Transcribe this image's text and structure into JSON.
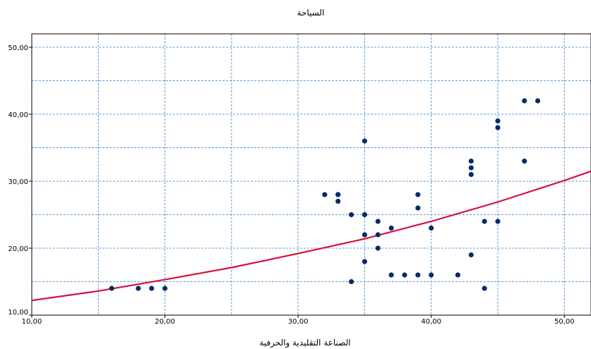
{
  "chart_data": {
    "type": "scatter",
    "title": "السياحة",
    "xlabel": "الصناعة التقليدية والحرفية",
    "ylabel": "",
    "xlim": [
      10,
      52
    ],
    "ylim": [
      10,
      52
    ],
    "x_ticks": [
      10,
      20,
      30,
      40,
      50
    ],
    "y_ticks": [
      10,
      20,
      30,
      40,
      50
    ],
    "x_tick_labels": [
      "10,00",
      "20,00",
      "30,00",
      "40,00",
      "50,00"
    ],
    "y_tick_labels": [
      "10,00",
      "20,00",
      "30,00",
      "40,00",
      "50,00"
    ],
    "grid": true,
    "points_color": "#0a2a6b",
    "fit_color": "#d6103f",
    "grid_color": "#5b9bd5",
    "points": [
      [
        16,
        14
      ],
      [
        18,
        14
      ],
      [
        19,
        14
      ],
      [
        20,
        14
      ],
      [
        32,
        28
      ],
      [
        33,
        28
      ],
      [
        33,
        28
      ],
      [
        33,
        27
      ],
      [
        34,
        25
      ],
      [
        34,
        15
      ],
      [
        35,
        36
      ],
      [
        35,
        25
      ],
      [
        35,
        22
      ],
      [
        35,
        18
      ],
      [
        36,
        24
      ],
      [
        36,
        22
      ],
      [
        36,
        20
      ],
      [
        37,
        23
      ],
      [
        37,
        16
      ],
      [
        38,
        16
      ],
      [
        39,
        28
      ],
      [
        39,
        26
      ],
      [
        39,
        16
      ],
      [
        40,
        23
      ],
      [
        40,
        16
      ],
      [
        42,
        16
      ],
      [
        43,
        33
      ],
      [
        43,
        32
      ],
      [
        43,
        31
      ],
      [
        43,
        19
      ],
      [
        44,
        24
      ],
      [
        44,
        14
      ],
      [
        45,
        39
      ],
      [
        45,
        38
      ],
      [
        45,
        24
      ],
      [
        47,
        42
      ],
      [
        47,
        33
      ],
      [
        48,
        42
      ]
    ],
    "fit": {
      "model": "exponential",
      "x": [
        10,
        15,
        20,
        25,
        30,
        35,
        40,
        45,
        50,
        52
      ],
      "y": [
        12.2,
        13.6,
        15.3,
        17.1,
        19.2,
        21.4,
        24.0,
        26.9,
        30.1,
        31.5
      ]
    }
  }
}
